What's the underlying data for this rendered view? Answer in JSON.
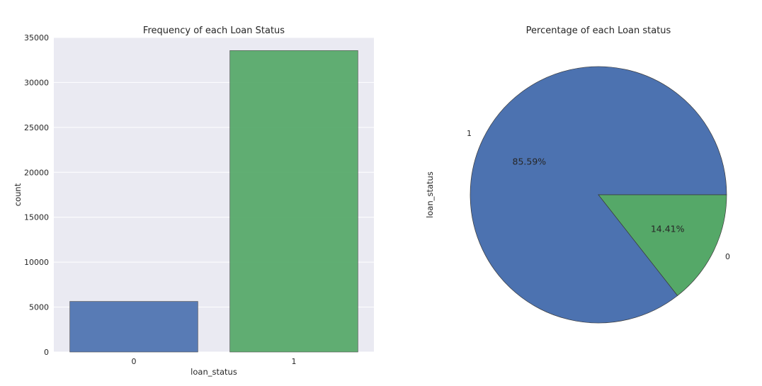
{
  "chart_data": [
    {
      "type": "bar",
      "title": "Frequency of each Loan Status",
      "xlabel": "loan_status",
      "ylabel": "count",
      "categories": [
        "0",
        "1"
      ],
      "values": [
        5630,
        33550
      ],
      "ylim": [
        0,
        35000
      ],
      "yticks": [
        0,
        5000,
        10000,
        15000,
        20000,
        25000,
        30000,
        35000
      ],
      "grid": true,
      "colors": [
        "#4c72b0",
        "#55a868"
      ]
    },
    {
      "type": "pie",
      "title": "Percentage of each Loan status",
      "ylabel": "loan_status",
      "labels": [
        "1",
        "0"
      ],
      "values": [
        85.59,
        14.41
      ],
      "value_labels": [
        "85.59%",
        "14.41%"
      ],
      "colors": [
        "#4c72b0",
        "#55a868"
      ]
    }
  ]
}
